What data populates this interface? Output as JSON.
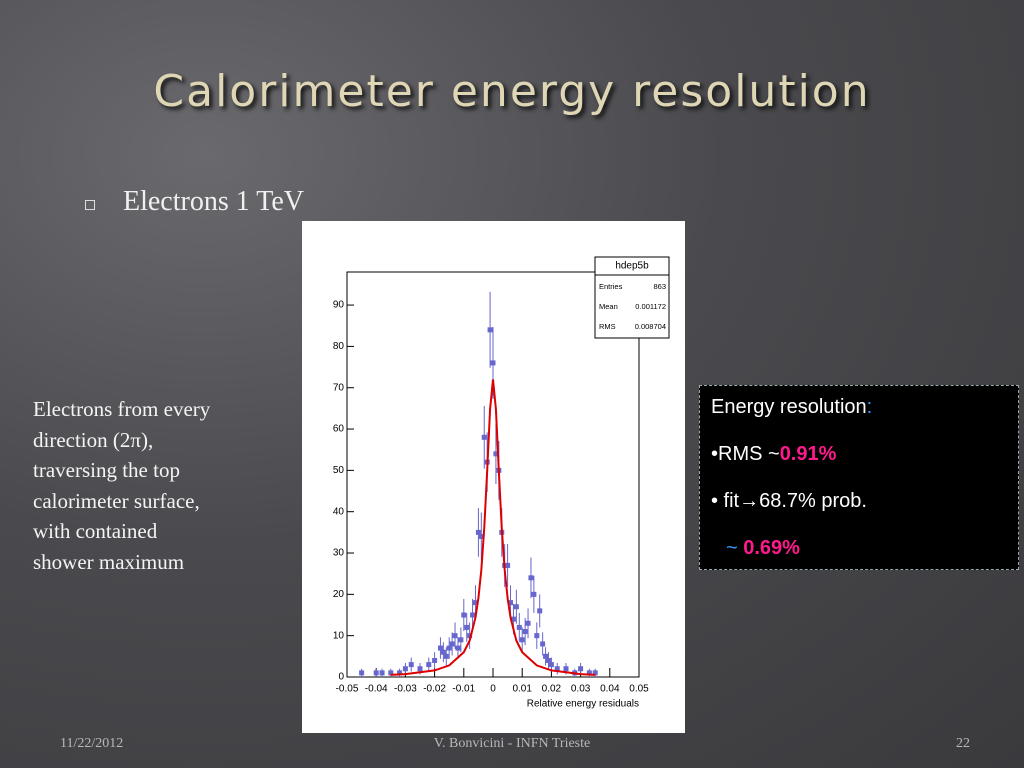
{
  "slide": {
    "title": "Calorimeter energy resolution",
    "bullet": "Electrons 1 TeV",
    "side_text": [
      "Electrons from every",
      "direction (2π),",
      "traversing the top",
      "calorimeter surface,",
      "with contained",
      "shower maximum"
    ],
    "box": {
      "line1": [
        "Energy resolution",
        ":"
      ],
      "line2": [
        "•RMS ~",
        "0.91%"
      ],
      "line3": "• fit→68.7% prob.",
      "line4": [
        "~",
        "0.69%"
      ]
    },
    "footer": {
      "date": "11/22/2012",
      "author": "V. Bonvicini - INFN Trieste",
      "page": "22"
    }
  },
  "chart_data": {
    "type": "scatter",
    "x_label": "Relative energy residuals",
    "stats": {
      "title": "hdep5b",
      "rows": [
        [
          "Entries",
          863
        ],
        [
          "Mean",
          0.001172
        ],
        [
          "RMS",
          0.008704
        ]
      ]
    },
    "xlim": [
      -0.05,
      0.05
    ],
    "xticks": [
      -0.05,
      -0.04,
      -0.03,
      -0.02,
      -0.01,
      0,
      0.01,
      0.02,
      0.03,
      0.04,
      0.05
    ],
    "ylim": [
      0,
      98
    ],
    "yticks": [
      0,
      10,
      20,
      30,
      40,
      50,
      60,
      70,
      80,
      90
    ],
    "series": [
      {
        "type": "errorbar",
        "color": "#6666cc",
        "x": [
          -0.045,
          -0.04,
          -0.038,
          -0.035,
          -0.032,
          -0.03,
          -0.028,
          -0.025,
          -0.022,
          -0.02,
          -0.018,
          -0.017,
          -0.016,
          -0.015,
          -0.014,
          -0.013,
          -0.012,
          -0.011,
          -0.01,
          -0.009,
          -0.008,
          -0.007,
          -0.006,
          -0.005,
          -0.004,
          -0.003,
          -0.002,
          -0.001,
          0,
          0.001,
          0.002,
          0.003,
          0.004,
          0.005,
          0.006,
          0.007,
          0.008,
          0.009,
          0.01,
          0.011,
          0.012,
          0.013,
          0.014,
          0.015,
          0.016,
          0.017,
          0.018,
          0.019,
          0.02,
          0.022,
          0.025,
          0.028,
          0.03,
          0.033,
          0.035
        ],
        "values": [
          1,
          1,
          1,
          1,
          1,
          2,
          3,
          2,
          3,
          4,
          7,
          6,
          5,
          7,
          8,
          10,
          7,
          9,
          15,
          12,
          10,
          15,
          18,
          35,
          34,
          58,
          52,
          84,
          76,
          54,
          50,
          35,
          27,
          27,
          18,
          14,
          17,
          12,
          9,
          11,
          13,
          24,
          20,
          10,
          16,
          8,
          5,
          4,
          3,
          2,
          2,
          1,
          2,
          1,
          1
        ],
        "errors": [
          1,
          1,
          1,
          1,
          1,
          1.4,
          1.7,
          1.4,
          1.7,
          2,
          2.6,
          2.4,
          2.2,
          2.6,
          2.8,
          3.2,
          2.6,
          3,
          3.9,
          3.5,
          3.2,
          3.9,
          4.2,
          5.9,
          5.8,
          7.6,
          7.2,
          9.2,
          8.7,
          7.3,
          7.1,
          5.9,
          5.2,
          5.2,
          4.2,
          3.7,
          4.1,
          3.5,
          3,
          3.3,
          3.6,
          4.9,
          4.5,
          3.2,
          4,
          2.8,
          2.2,
          2,
          1.7,
          1.4,
          1.4,
          1,
          1.4,
          1,
          1
        ]
      },
      {
        "type": "line",
        "color": "#dd0000",
        "x": [
          -0.035,
          -0.03,
          -0.02,
          -0.015,
          -0.01,
          -0.008,
          -0.006,
          -0.005,
          -0.004,
          -0.003,
          -0.002,
          -0.001,
          0,
          0.001,
          0.002,
          0.003,
          0.004,
          0.005,
          0.006,
          0.008,
          0.01,
          0.015,
          0.02,
          0.03,
          0.035
        ],
        "values": [
          0.5,
          0.7,
          1.6,
          2.8,
          6,
          8.8,
          14.4,
          19.1,
          25.9,
          36,
          49.8,
          64.8,
          72,
          64.8,
          49.8,
          36,
          25.9,
          19.1,
          14.4,
          8.8,
          6,
          2.8,
          1.6,
          0.7,
          0.5
        ]
      }
    ]
  }
}
